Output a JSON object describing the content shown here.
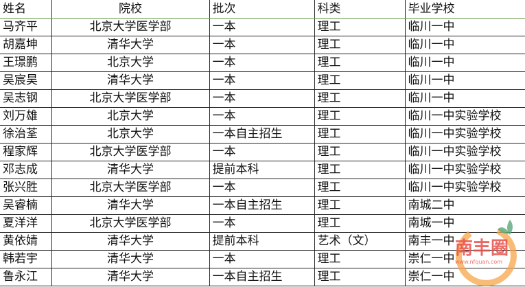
{
  "headers": [
    "姓名",
    "院校",
    "批次",
    "科类",
    "毕业学校"
  ],
  "rows": [
    [
      "马齐平",
      "北京大学医学部",
      "一本",
      "理工",
      "临川一中"
    ],
    [
      "胡嘉坤",
      "清华大学",
      "一本",
      "理工",
      "临川一中"
    ],
    [
      "王璟鹏",
      "北京大学",
      "一本",
      "理工",
      "临川一中"
    ],
    [
      "吴宸昊",
      "清华大学",
      "一本",
      "理工",
      "临川一中"
    ],
    [
      "吴志钢",
      "北京大学医学部",
      "一本",
      "理工",
      "临川一中"
    ],
    [
      "刘万雄",
      "北京大学",
      "一本",
      "理工",
      "临川一中实验学校"
    ],
    [
      "徐治荃",
      "北京大学",
      "一本自主招生",
      "理工",
      "临川一中实验学校"
    ],
    [
      "程家辉",
      "北京大学医学部",
      "一本",
      "理工",
      "临川一中实验学校"
    ],
    [
      "邓志成",
      "清华大学",
      "提前本科",
      "理工",
      "临川一中实验学校"
    ],
    [
      "张兴胜",
      "北京大学医学部",
      "一本",
      "理工",
      "临川一中实验学校"
    ],
    [
      "吴睿楠",
      "清华大学",
      "一本自主招生",
      "理工",
      "南城二中"
    ],
    [
      "夏洋洋",
      "北京大学医学部",
      "一本",
      "理工",
      "南城一中"
    ],
    [
      "黄依婧",
      "清华大学",
      "提前本科",
      "艺术（文）",
      "南丰一中"
    ],
    [
      "韩若宇",
      "清华大学",
      "一本",
      "理工",
      "崇仁一中"
    ],
    [
      "鲁永江",
      "清华大学",
      "一本自主招生",
      "理工",
      "崇仁一中"
    ]
  ],
  "watermark": {
    "brand": "南丰圈",
    "url": "www.nfquan.com",
    "colors": {
      "orange": "#f5a64a",
      "red": "#e8504a",
      "leaf": "#5aa87a"
    }
  }
}
